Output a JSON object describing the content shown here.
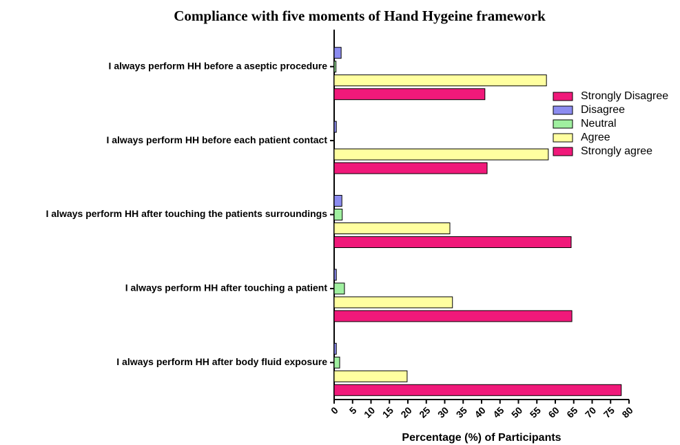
{
  "chart_data": {
    "type": "hbar",
    "title": "Compliance with five moments of Hand Hygeine framework",
    "x_label": "Percentage (%) of Participants",
    "categories": [
      "I always perform HH before a aseptic procedure",
      "I always perform HH before each patient contact",
      "I always perform HH after touching the patients surroundings",
      "I always perform HH after touching a patient",
      "I always perform HH after body fluid exposure"
    ],
    "series": [
      {
        "name": "Strongly Disagree",
        "color": "#f0197a",
        "values": [
          0,
          0,
          0,
          0,
          0
        ]
      },
      {
        "name": "Disagree",
        "color": "#8c8cf0",
        "values": [
          1.9,
          0.6,
          2.1,
          0.6,
          0.6
        ]
      },
      {
        "name": "Neutral",
        "color": "#a0f0a0",
        "values": [
          0.5,
          0,
          2.2,
          2.8,
          1.5
        ]
      },
      {
        "name": "Agree",
        "color": "#ffffa0",
        "values": [
          57.6,
          58.1,
          31.4,
          32.1,
          19.8
        ]
      },
      {
        "name": "Strongly agree",
        "color": "#f0197a",
        "values": [
          40.9,
          41.5,
          64.3,
          64.5,
          77.9
        ]
      }
    ],
    "xlim": [
      0,
      80
    ],
    "xticks": [
      0,
      5,
      10,
      15,
      20,
      25,
      30,
      35,
      40,
      45,
      50,
      55,
      60,
      65,
      70,
      75,
      80
    ],
    "legend": "right"
  }
}
